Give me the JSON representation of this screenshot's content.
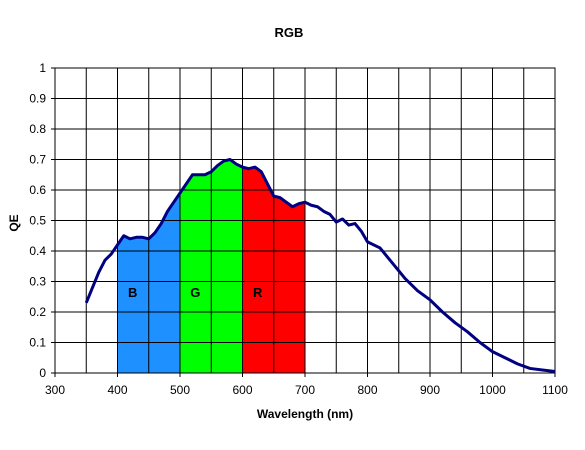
{
  "chart_data": {
    "type": "line",
    "title": "RGB",
    "xlabel": "Wavelength (nm)",
    "ylabel": "QE",
    "xlim": [
      300,
      1100
    ],
    "ylim": [
      0,
      1
    ],
    "x_ticks": [
      "300",
      "400",
      "500",
      "600",
      "700",
      "800",
      "900",
      "1000",
      "1100"
    ],
    "y_ticks": [
      "0",
      "0.1",
      "0.2",
      "0.3",
      "0.4",
      "0.5",
      "0.6",
      "0.7",
      "0.8",
      "0.9",
      "1"
    ],
    "grid": true,
    "legend": "none",
    "line_color": "#000080",
    "series": [
      {
        "x": [
          350,
          360,
          370,
          380,
          390,
          400,
          410,
          420,
          430,
          440,
          450,
          460,
          470,
          480,
          490,
          500,
          510,
          520,
          530,
          540,
          550,
          560,
          570,
          580,
          590,
          600,
          610,
          620,
          630,
          640,
          650,
          660,
          670,
          680,
          690,
          700,
          710,
          720,
          730,
          740,
          750,
          760,
          770,
          780,
          790,
          800,
          820,
          840,
          860,
          880,
          900,
          920,
          940,
          960,
          980,
          1000,
          1020,
          1040,
          1060,
          1080,
          1100
        ],
        "y": [
          0.23,
          0.28,
          0.33,
          0.37,
          0.39,
          0.42,
          0.45,
          0.44,
          0.445,
          0.445,
          0.44,
          0.46,
          0.49,
          0.53,
          0.56,
          0.59,
          0.62,
          0.65,
          0.65,
          0.65,
          0.66,
          0.68,
          0.695,
          0.7,
          0.685,
          0.675,
          0.67,
          0.675,
          0.66,
          0.62,
          0.58,
          0.575,
          0.56,
          0.545,
          0.555,
          0.56,
          0.55,
          0.545,
          0.53,
          0.52,
          0.495,
          0.505,
          0.485,
          0.49,
          0.465,
          0.43,
          0.41,
          0.36,
          0.31,
          0.27,
          0.24,
          0.2,
          0.165,
          0.135,
          0.1,
          0.07,
          0.05,
          0.03,
          0.015,
          0.01,
          0.005
        ]
      }
    ],
    "bands": [
      {
        "label": "B",
        "from": 400,
        "to": 500,
        "color": "#1E90FF"
      },
      {
        "label": "G",
        "from": 500,
        "to": 600,
        "color": "#00FF00"
      },
      {
        "label": "R",
        "from": 600,
        "to": 700,
        "color": "#FF0000"
      }
    ]
  }
}
